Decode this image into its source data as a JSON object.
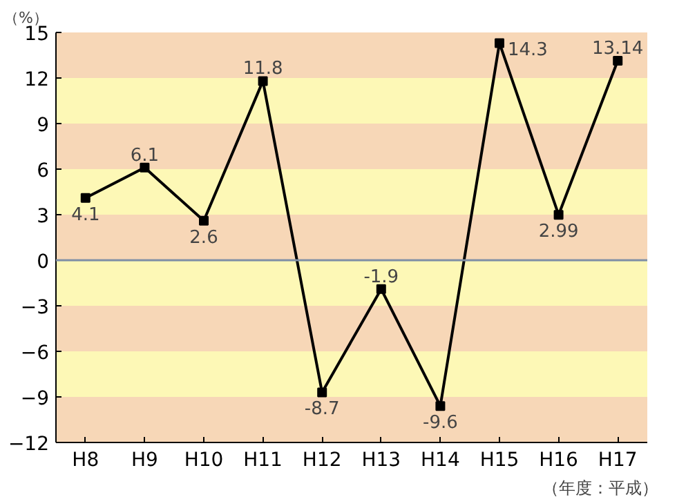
{
  "chart_data": {
    "type": "line",
    "ylabel": "（%）",
    "xlabel": "（年度：平成）",
    "categories": [
      "H8",
      "H9",
      "H10",
      "H11",
      "H12",
      "H13",
      "H14",
      "H15",
      "H16",
      "H17"
    ],
    "series": [
      {
        "color": "#000000",
        "values": [
          4.1,
          6.1,
          2.6,
          11.8,
          -8.7,
          -1.9,
          -9.6,
          14.3,
          2.99,
          13.14
        ]
      }
    ],
    "value_labels": [
      "4.1",
      "6.1",
      "2.6",
      "11.8",
      "-8.7",
      "-1.9",
      "-9.6",
      "14.3",
      "2.99",
      "13.14"
    ],
    "ylim": [
      -12,
      15
    ],
    "yticks": [
      -12,
      -9,
      -6,
      -3,
      0,
      3,
      6,
      9,
      12,
      15
    ],
    "marker": "square",
    "line_style": "solid",
    "ref_lines": [
      {
        "axis": "y",
        "value": 0,
        "color": "#7f8fa6"
      }
    ],
    "bands": [
      {
        "axis": "y",
        "from": 12,
        "to": 15,
        "color": "#f7d7b7"
      },
      {
        "axis": "y",
        "from": 9,
        "to": 12,
        "color": "#fdf8b6"
      },
      {
        "axis": "y",
        "from": 6,
        "to": 9,
        "color": "#f7d7b7"
      },
      {
        "axis": "y",
        "from": 3,
        "to": 6,
        "color": "#fdf8b6"
      },
      {
        "axis": "y",
        "from": 0,
        "to": 3,
        "color": "#f7d7b7"
      },
      {
        "axis": "y",
        "from": -3,
        "to": 0,
        "color": "#fdf8b6"
      },
      {
        "axis": "y",
        "from": -6,
        "to": -3,
        "color": "#f7d7b7"
      },
      {
        "axis": "y",
        "from": -9,
        "to": -6,
        "color": "#fdf8b6"
      },
      {
        "axis": "y",
        "from": -12,
        "to": -9,
        "color": "#f7d7b7"
      }
    ]
  }
}
